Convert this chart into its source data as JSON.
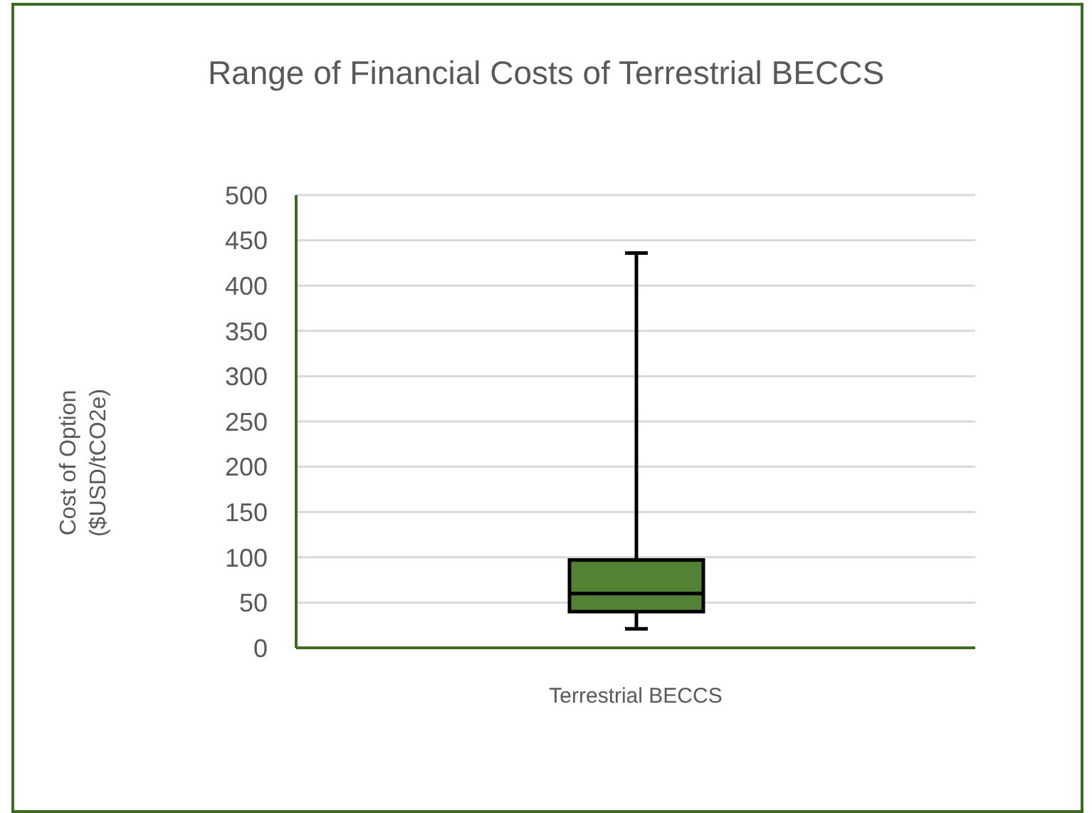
{
  "chart_data": {
    "type": "box",
    "title": "Range of Financial Costs of Terrestrial BECCS",
    "ylabel": "Cost of Option ($USD/tCO2e)",
    "categories": [
      "Terrestrial BECCS"
    ],
    "boxes": [
      {
        "low": 21,
        "q1": 40,
        "median": 60,
        "q3": 97,
        "high": 436
      }
    ],
    "color": "#548235",
    "ylim": [
      0,
      500
    ],
    "yticks": [
      0,
      50,
      100,
      150,
      200,
      250,
      300,
      350,
      400,
      450,
      500
    ],
    "grid": "y"
  }
}
